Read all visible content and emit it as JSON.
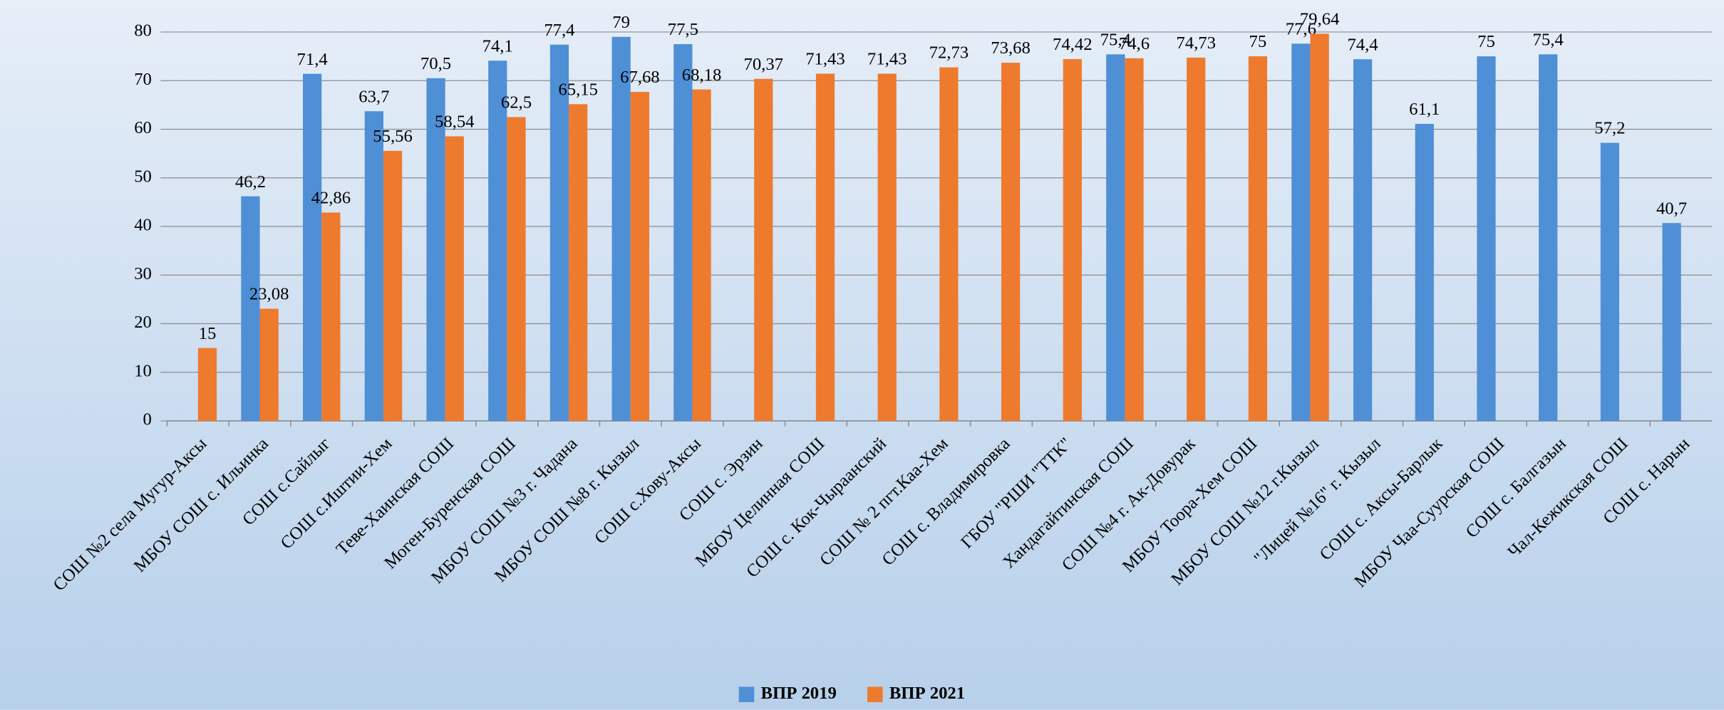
{
  "chart_data": {
    "type": "bar",
    "categories": [
      "СОШ №2 села Мугур-Аксы",
      "МБОУ СОШ с. Ильинка",
      "СОШ  с.Сайлыг",
      "СОШ  с.Иштии-Хем",
      "Теве-Хаинская СОШ",
      "Моген-Буренская СОШ",
      "МБОУ СОШ №3 г. Чадана",
      "МБОУ СОШ №8 г. Кызыл",
      "СОШ с.Хову-Аксы",
      "СОШ с. Эрзин",
      "МБОУ Целинная СОШ",
      "СОШ  с. Кок-Чыраанский",
      "СОШ № 2  пгт.Каа-Хем",
      "СОШ с. Владимировка",
      "ГБОУ \"РШИ \"ТТК\"",
      "Хандагайтинская СОШ",
      "СОШ  №4 г. Ак-Довурак",
      "МБОУ Тоора-Хем СОШ",
      "МБОУ СОШ №12 г.Кызыл",
      "\"Лицей №16\" г. Кызыл",
      "СОШ с. Аксы-Барлык",
      "МБОУ Чаа-Суурская СОШ",
      "СОШ с. Балгазын",
      "Чал-Кежикская СОШ",
      "СОШ с. Нарын"
    ],
    "series": [
      {
        "name": "ВПР 2019",
        "color": "#4f8fd6",
        "values": [
          null,
          46.2,
          71.4,
          63.7,
          70.5,
          74.1,
          77.4,
          79,
          77.5,
          null,
          null,
          null,
          null,
          null,
          null,
          75.4,
          null,
          null,
          77.6,
          74.4,
          61.1,
          75,
          75.4,
          57.2,
          40.7
        ],
        "value_labels": [
          null,
          "46,2",
          "71,4",
          "63,7",
          "70,5",
          "74,1",
          "77,4",
          "79",
          "77,5",
          null,
          null,
          null,
          null,
          null,
          null,
          "75,4",
          null,
          null,
          "77,6",
          "74,4",
          "61,1",
          "75",
          "75,4",
          "57,2",
          "40,7"
        ]
      },
      {
        "name": "ВПР 2021",
        "color": "#ee7a2e",
        "values": [
          15,
          23.08,
          42.86,
          55.56,
          58.54,
          62.5,
          65.15,
          67.68,
          68.18,
          70.37,
          71.43,
          71.43,
          72.73,
          73.68,
          74.42,
          74.6,
          74.73,
          75,
          79.64,
          null,
          null,
          null,
          null,
          null,
          null
        ],
        "value_labels": [
          "15",
          "23,08",
          "42,86",
          "55,56",
          "58,54",
          "62,5",
          "65,15",
          "67,68",
          "68,18",
          "70,37",
          "71,43",
          "71,43",
          "72,73",
          "73,68",
          "74,42",
          "74,6",
          "74,73",
          "75",
          "79,64",
          null,
          null,
          null,
          null,
          null,
          null
        ]
      }
    ],
    "ylim": [
      0,
      80
    ],
    "yticks": [
      0,
      10,
      20,
      30,
      40,
      50,
      60,
      70,
      80
    ],
    "grid": true,
    "legend": "bottom"
  }
}
